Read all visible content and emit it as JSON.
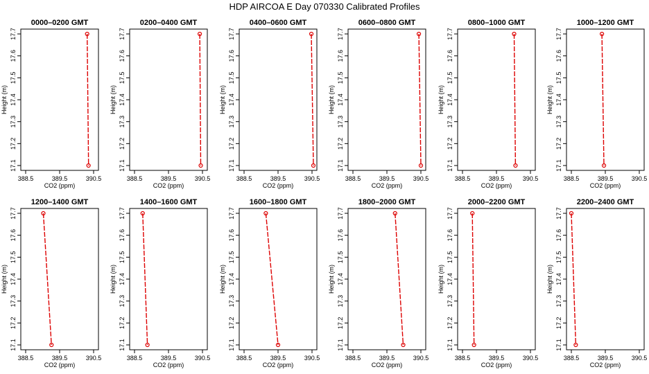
{
  "figure": {
    "title": "HDP  AIRCOA E  Day 070330  Calibrated Profiles",
    "xlabel": "CO2 (ppm)",
    "ylabel": "Height (m)",
    "line_color": "#dd0000",
    "frame_color": "#000000"
  },
  "chart_data": {
    "type": "line",
    "xlim": [
      388.5,
      390.5
    ],
    "ylim": [
      17.1,
      17.7
    ],
    "x_ticks": [
      "388.5",
      "389.5",
      "390.5"
    ],
    "y_ticks": [
      "17.1",
      "17.2",
      "17.3",
      "17.4",
      "17.5",
      "17.6",
      "17.7"
    ],
    "panels": [
      {
        "title": "0000–0200 GMT",
        "points": [
          {
            "co2": 390.31,
            "height": 17.7
          },
          {
            "co2": 390.35,
            "height": 17.1
          }
        ]
      },
      {
        "title": "0200–0400 GMT",
        "points": [
          {
            "co2": 390.42,
            "height": 17.7
          },
          {
            "co2": 390.45,
            "height": 17.1
          }
        ]
      },
      {
        "title": "0400–0600 GMT",
        "points": [
          {
            "co2": 390.48,
            "height": 17.7
          },
          {
            "co2": 390.54,
            "height": 17.1
          }
        ]
      },
      {
        "title": "0600–0800 GMT",
        "points": [
          {
            "co2": 390.44,
            "height": 17.7
          },
          {
            "co2": 390.5,
            "height": 17.1
          }
        ]
      },
      {
        "title": "0800–1000 GMT",
        "points": [
          {
            "co2": 390.02,
            "height": 17.7
          },
          {
            "co2": 390.06,
            "height": 17.1
          }
        ]
      },
      {
        "title": "1000–1200 GMT",
        "points": [
          {
            "co2": 389.4,
            "height": 17.7
          },
          {
            "co2": 389.46,
            "height": 17.1
          }
        ]
      },
      {
        "title": "1200–1400 GMT",
        "points": [
          {
            "co2": 389.02,
            "height": 17.7
          },
          {
            "co2": 389.26,
            "height": 17.1
          }
        ]
      },
      {
        "title": "1400–1600 GMT",
        "points": [
          {
            "co2": 388.74,
            "height": 17.7
          },
          {
            "co2": 388.88,
            "height": 17.1
          }
        ]
      },
      {
        "title": "1600–1800 GMT",
        "points": [
          {
            "co2": 389.14,
            "height": 17.7
          },
          {
            "co2": 389.5,
            "height": 17.1
          }
        ]
      },
      {
        "title": "1800–2000 GMT",
        "points": [
          {
            "co2": 389.74,
            "height": 17.7
          },
          {
            "co2": 389.98,
            "height": 17.1
          }
        ]
      },
      {
        "title": "2000–2200 GMT",
        "points": [
          {
            "co2": 388.79,
            "height": 17.7
          },
          {
            "co2": 388.84,
            "height": 17.1
          }
        ]
      },
      {
        "title": "2200–2400 GMT",
        "points": [
          {
            "co2": 388.5,
            "height": 17.7
          },
          {
            "co2": 388.63,
            "height": 17.1
          }
        ]
      }
    ]
  }
}
